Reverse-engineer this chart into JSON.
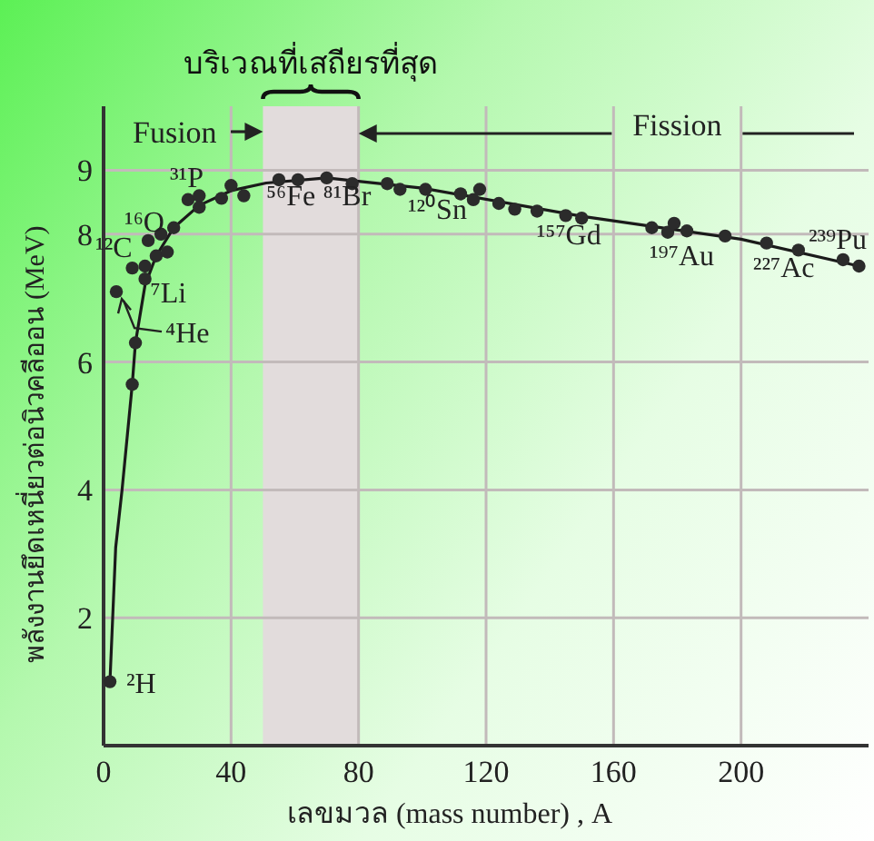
{
  "chart_data": {
    "type": "scatter",
    "xlabel": "เลขมวล (mass number) , A",
    "ylabel": "พลังงานยึดเหนี่ยวต่อนิวคลีออน (MeV)",
    "xlim": [
      0,
      240
    ],
    "ylim": [
      0,
      10
    ],
    "xticks": [
      0,
      40,
      80,
      120,
      160,
      200
    ],
    "yticks": [
      2,
      4,
      6,
      8,
      9
    ],
    "grid": true,
    "series": [
      {
        "type": "scatter",
        "marker": "circle",
        "color": "#2b2b2b",
        "x": [
          2,
          4,
          9,
          9,
          10,
          13,
          13,
          14,
          16.5,
          18,
          20,
          22,
          26.5,
          30,
          30,
          37,
          40,
          44,
          55,
          61,
          70,
          78,
          89,
          93,
          101,
          112,
          116,
          118,
          124,
          129,
          136,
          145,
          150,
          172,
          177,
          179,
          183,
          195,
          208,
          218,
          232,
          237
        ],
        "values": [
          1.0,
          7.1,
          5.65,
          7.47,
          6.3,
          7.5,
          7.3,
          7.9,
          7.66,
          8.0,
          7.72,
          8.1,
          8.54,
          8.6,
          8.42,
          8.56,
          8.76,
          8.6,
          8.85,
          8.85,
          8.88,
          8.79,
          8.79,
          8.7,
          8.7,
          8.63,
          8.54,
          8.7,
          8.48,
          8.39,
          8.36,
          8.29,
          8.25,
          8.1,
          8.03,
          8.17,
          8.05,
          7.97,
          7.86,
          7.75,
          7.6,
          7.5
        ]
      },
      {
        "type": "line",
        "marker": "none",
        "color": "#1a1a1a",
        "x": [
          2,
          3.8,
          5.8,
          9,
          10,
          13,
          16.5,
          22,
          30,
          40,
          51,
          70,
          100,
          150,
          200,
          237
        ],
        "values": [
          1.0,
          3.1,
          4.0,
          5.65,
          6.3,
          7.2,
          7.66,
          8.1,
          8.45,
          8.68,
          8.8,
          8.88,
          8.72,
          8.28,
          7.92,
          7.5
        ]
      }
    ],
    "bands": [
      {
        "axis": "x",
        "from": 50,
        "to": 80,
        "label": "บริเวณที่เสถียรที่สุด",
        "color": "#e2dcdc"
      }
    ],
    "annotations": [
      {
        "text": "²H",
        "x": 2,
        "y": 1.0
      },
      {
        "text": "⁴He",
        "x": 4,
        "y": 7.1
      },
      {
        "text": "⁷Li",
        "x": 13,
        "y": 7.3
      },
      {
        "text": "¹²C",
        "x": 13,
        "y": 7.5
      },
      {
        "text": "¹⁶O",
        "x": 14,
        "y": 7.9
      },
      {
        "text": "³¹P",
        "x": 26.5,
        "y": 8.54
      },
      {
        "text": "⁵⁶Fe",
        "x": 55,
        "y": 8.85
      },
      {
        "text": "⁸¹Br",
        "x": 70,
        "y": 8.88
      },
      {
        "text": "¹²⁰Sn",
        "x": 112,
        "y": 8.63
      },
      {
        "text": "¹⁵⁷Gd",
        "x": 145,
        "y": 8.29
      },
      {
        "text": "¹⁹⁷Au",
        "x": 177,
        "y": 8.03
      },
      {
        "text": "²²⁷Ac",
        "x": 218,
        "y": 7.75
      },
      {
        "text": "²³⁹Pu",
        "x": 232,
        "y": 7.6
      },
      "Fusion",
      "Fission"
    ]
  }
}
